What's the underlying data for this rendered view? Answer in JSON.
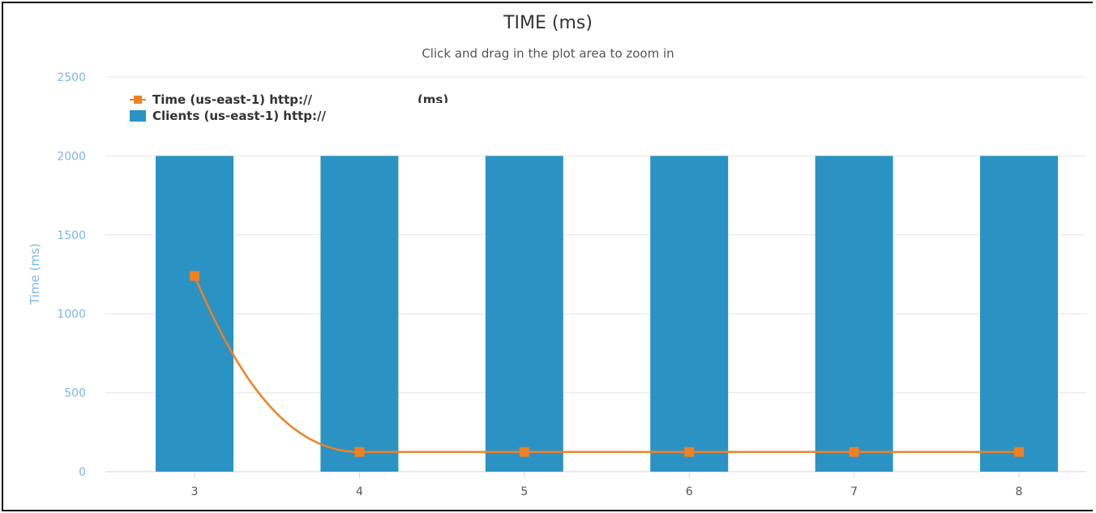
{
  "chart_data": {
    "type": "bar",
    "title": "TIME (ms)",
    "subtitle": "Click and drag in the plot area to zoom in",
    "ylabel": "Time (ms)",
    "xlabel": "",
    "categories": [
      "3",
      "4",
      "5",
      "6",
      "7",
      "8"
    ],
    "ylim": [
      0,
      2500
    ],
    "yticks": [
      0,
      500,
      1000,
      1500,
      2000,
      2500
    ],
    "grid": true,
    "legend_placement": "top-left",
    "series": [
      {
        "name": "Clients (us-east-1) http://",
        "type": "bar",
        "color": "#2b93c4",
        "values": [
          2000,
          2000,
          2000,
          2000,
          2000,
          2000
        ]
      },
      {
        "name": "Time (us-east-1) http://",
        "name_suffix": "(ms)",
        "type": "line",
        "color": "#f08024",
        "values": [
          1240,
          125,
          125,
          125,
          125,
          125
        ]
      }
    ]
  }
}
